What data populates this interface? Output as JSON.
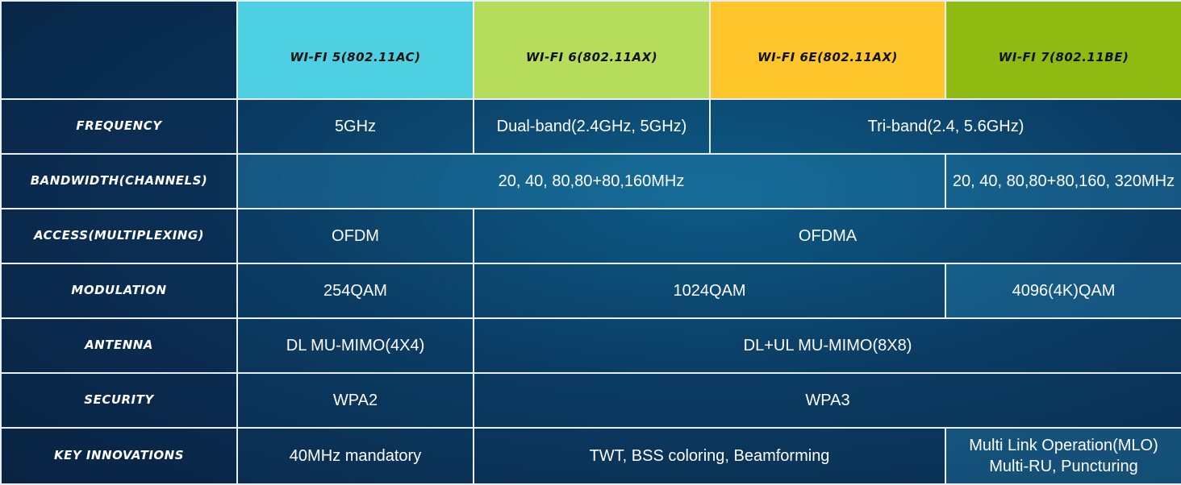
{
  "table": {
    "columns": [
      "WI-FI 5(802.11AC)",
      "WI-FI 6(802.11AX)",
      "WI-FI 6E(802.11AX)",
      "WI-FI 7(802.11BE)"
    ],
    "rows": [
      {
        "label": "FREQUENCY",
        "cells": [
          "5GHz",
          "Dual-band(2.4GHz, 5GHz)",
          "Tri-band(2.4, 5.6GHz)"
        ]
      },
      {
        "label": "BANDWIDTH(CHANNELS)",
        "cells": [
          "20, 40, 80,80+80,160MHz",
          "20, 40, 80,80+80,160, 320MHz"
        ]
      },
      {
        "label": "ACCESS(MULTIPLEXING)",
        "cells": [
          "OFDM",
          "OFDMA"
        ]
      },
      {
        "label": "MODULATION",
        "cells": [
          "254QAM",
          "1024QAM",
          "4096(4K)QAM"
        ]
      },
      {
        "label": "ANTENNA",
        "cells": [
          "DL MU-MIMO(4X4)",
          "DL+UL MU-MIMO(8X8)"
        ]
      },
      {
        "label": "SECURITY",
        "cells": [
          "WPA2",
          "WPA3"
        ]
      },
      {
        "label": "KEY INNOVATIONS",
        "cells": [
          "40MHz mandatory",
          "TWT, BSS coloring, Beamforming",
          [
            "Multi Link Operation(MLO)",
            "Multi-RU, Puncturing"
          ]
        ]
      }
    ]
  }
}
